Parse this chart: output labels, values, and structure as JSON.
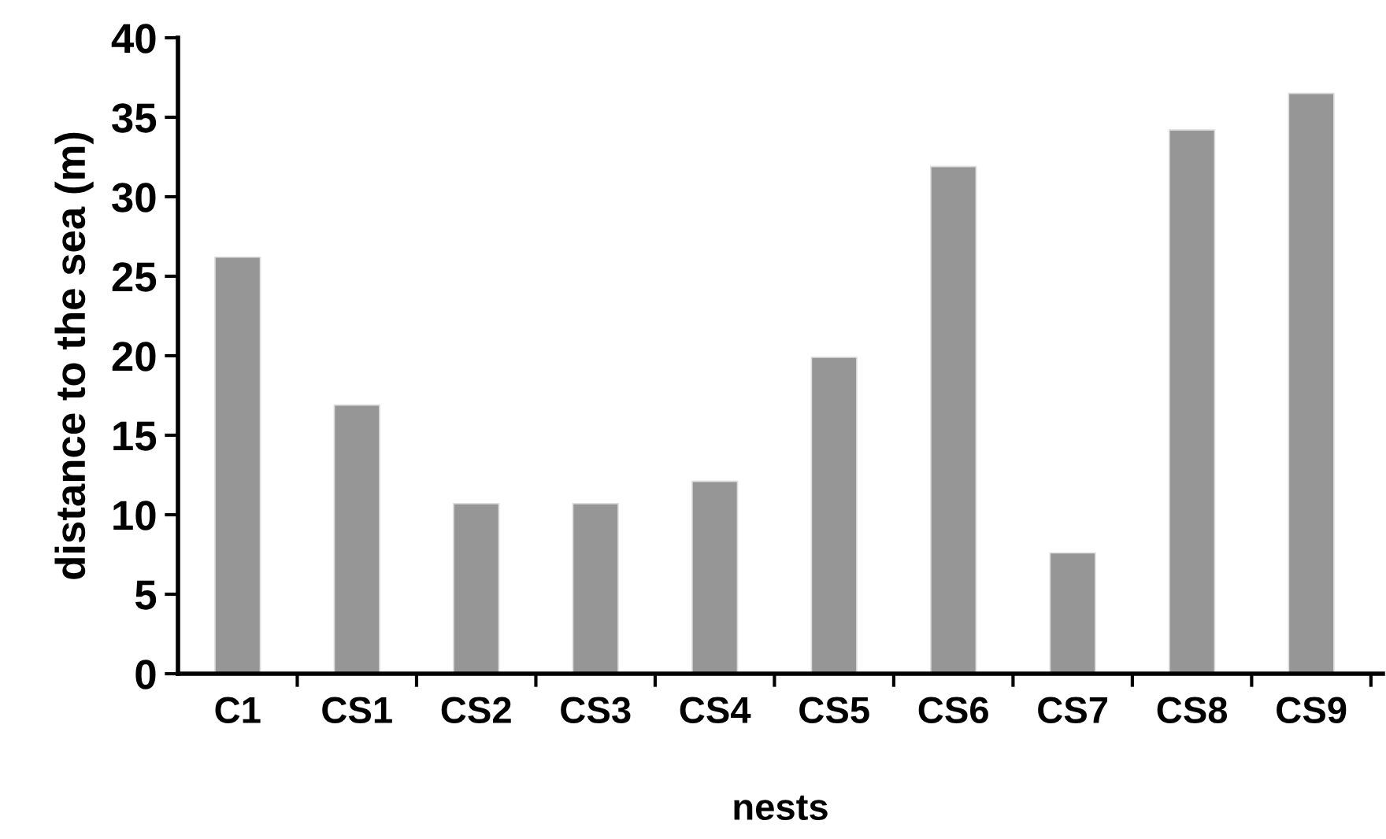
{
  "chart_data": {
    "type": "bar",
    "xlabel": "nests",
    "ylabel": "distance to the sea (m)",
    "categories": [
      "C1",
      "CS1",
      "CS2",
      "CS3",
      "CS4",
      "CS5",
      "CS6",
      "CS7",
      "CS8",
      "CS9"
    ],
    "values": [
      26.2,
      16.9,
      10.7,
      10.7,
      12.1,
      19.9,
      31.9,
      7.6,
      34.2,
      36.5
    ],
    "color": "#969696",
    "ylim": [
      0,
      40
    ],
    "yticks": [
      0,
      5,
      10,
      15,
      20,
      25,
      30,
      35,
      40
    ],
    "grid": false,
    "legend": false
  }
}
